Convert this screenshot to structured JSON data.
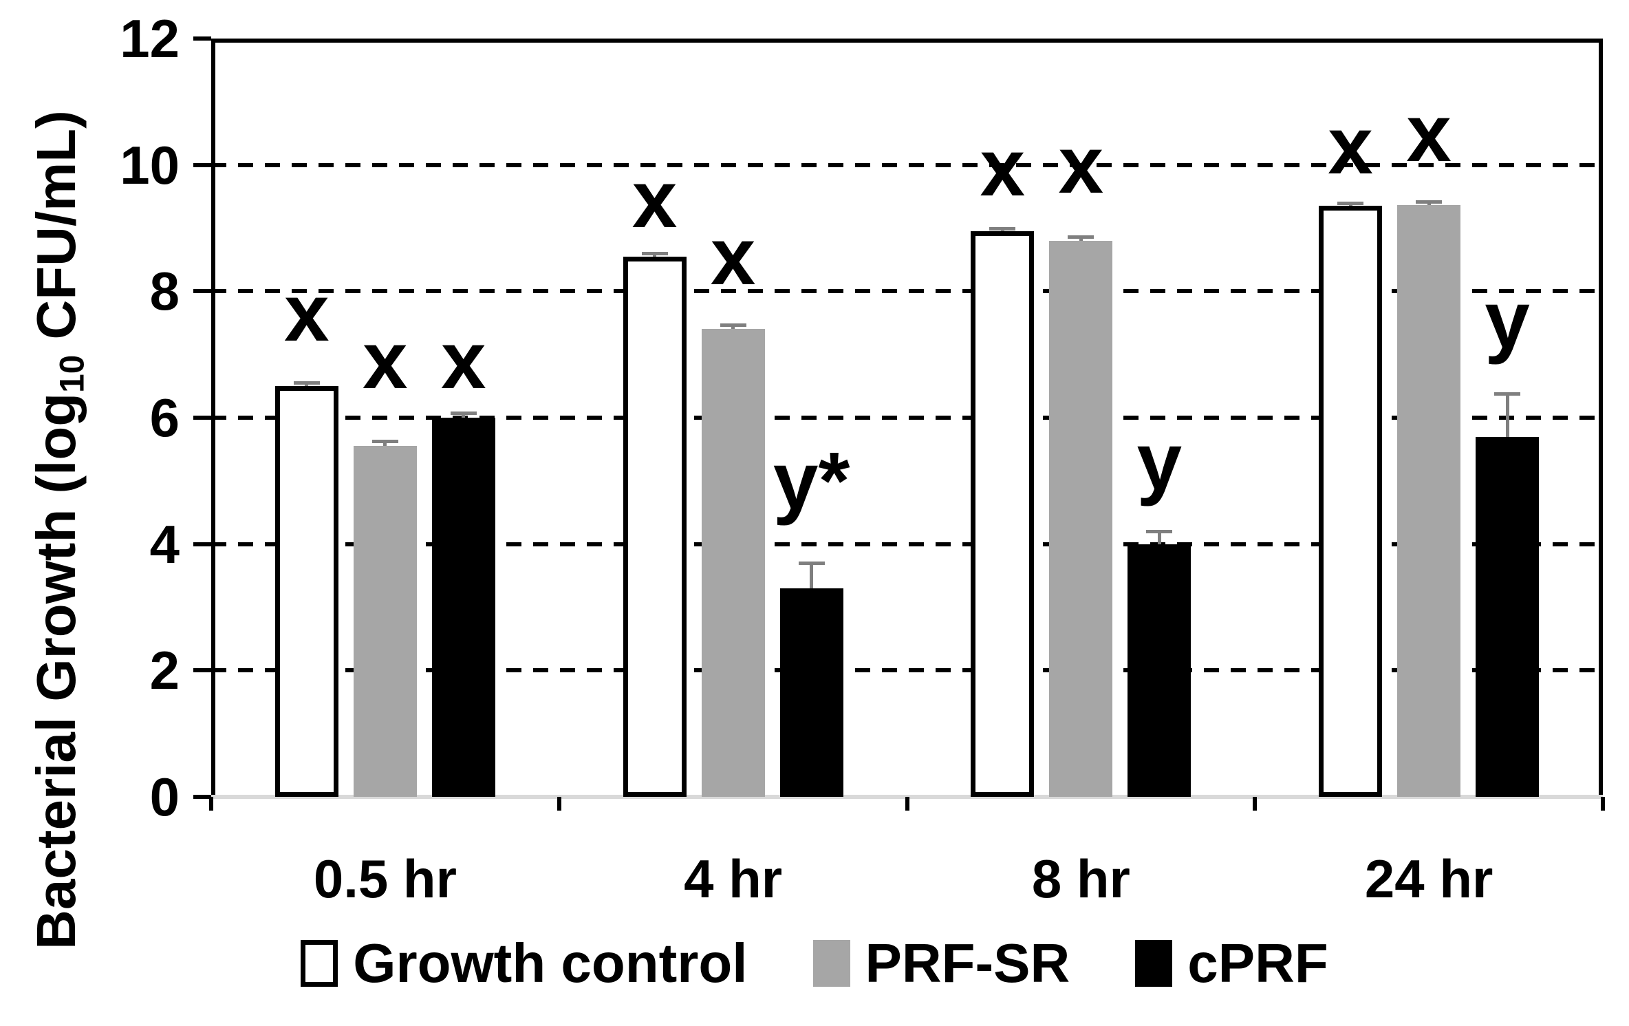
{
  "chart_data": {
    "type": "bar",
    "title": "",
    "ylabel_prefix": "Bacterial Growth (log",
    "ylabel_sub": "10",
    "ylabel_suffix": " CFU/mL)",
    "categories": [
      "0.5 hr",
      "4 hr",
      "8 hr",
      "24 hr"
    ],
    "series": [
      {
        "name": "Growth control",
        "fill": "#ffffff",
        "border": "#000000",
        "values": [
          6.5,
          8.55,
          8.95,
          9.35
        ],
        "errors": [
          0.05,
          0.05,
          0.05,
          0.05
        ]
      },
      {
        "name": "PRF-SR",
        "fill": "#a6a6a6",
        "border": "#a6a6a6",
        "values": [
          5.55,
          7.4,
          8.8,
          9.37
        ],
        "errors": [
          0.08,
          0.07,
          0.06,
          0.05
        ]
      },
      {
        "name": "cPRF",
        "fill": "#000000",
        "border": "#000000",
        "values": [
          6.0,
          3.3,
          4.0,
          5.7
        ],
        "errors": [
          0.08,
          0.4,
          0.2,
          0.68
        ]
      }
    ],
    "annotations": [
      [
        {
          "text": "x",
          "y": 7.65
        },
        {
          "text": "x",
          "y": 6.9
        },
        {
          "text": "x",
          "y": 6.9
        }
      ],
      [
        {
          "text": "x",
          "y": 9.45
        },
        {
          "text": "x",
          "y": 8.55
        },
        {
          "text": "y*",
          "y": 5.0
        }
      ],
      [
        {
          "text": "x",
          "y": 9.95
        },
        {
          "text": "x",
          "y": 10.0
        },
        {
          "text": "y",
          "y": 5.3
        }
      ],
      [
        {
          "text": "x",
          "y": 10.3
        },
        {
          "text": "x",
          "y": 10.5
        },
        {
          "text": "y",
          "y": 7.55
        }
      ]
    ],
    "yticks": [
      12,
      10,
      8,
      6,
      4,
      2,
      0
    ],
    "gridline_values": [
      10,
      8,
      6,
      4,
      2
    ],
    "ylim": [
      0,
      12
    ],
    "grid_on": true,
    "legend_position": "bottom",
    "colors": {
      "gridline": "#000000",
      "axis_border": "#000000",
      "baseline": "#d9d9d9",
      "error_bar": "#7f7f7f"
    }
  }
}
